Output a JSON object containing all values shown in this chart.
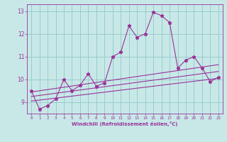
{
  "title": "",
  "xlabel": "Windchill (Refroidissement éolien,°C)",
  "xlim": [
    -0.5,
    23.5
  ],
  "ylim": [
    8.5,
    13.3
  ],
  "yticks": [
    9,
    10,
    11,
    12,
    13
  ],
  "xticks": [
    0,
    1,
    2,
    3,
    4,
    5,
    6,
    7,
    8,
    9,
    10,
    11,
    12,
    13,
    14,
    15,
    16,
    17,
    18,
    19,
    20,
    21,
    22,
    23
  ],
  "bg_color": "#c8e8e8",
  "line_color": "#993399",
  "grid_color": "#99cccc",
  "series1_x": [
    0,
    1,
    2,
    3,
    4,
    5,
    6,
    7,
    8,
    9,
    10,
    11,
    12,
    13,
    14,
    15,
    16,
    17,
    18,
    19,
    20,
    21,
    22,
    23
  ],
  "series1_y": [
    9.5,
    8.7,
    8.85,
    9.15,
    10.0,
    9.5,
    9.75,
    10.25,
    9.7,
    9.85,
    11.0,
    11.2,
    12.35,
    11.85,
    12.0,
    12.95,
    12.8,
    12.5,
    10.5,
    10.85,
    11.0,
    10.5,
    9.9,
    10.1
  ],
  "series2_x": [
    0,
    23
  ],
  "series2_y": [
    9.05,
    10.05
  ],
  "series3_x": [
    0,
    23
  ],
  "series3_y": [
    9.25,
    10.35
  ],
  "series4_x": [
    0,
    23
  ],
  "series4_y": [
    9.45,
    10.65
  ]
}
